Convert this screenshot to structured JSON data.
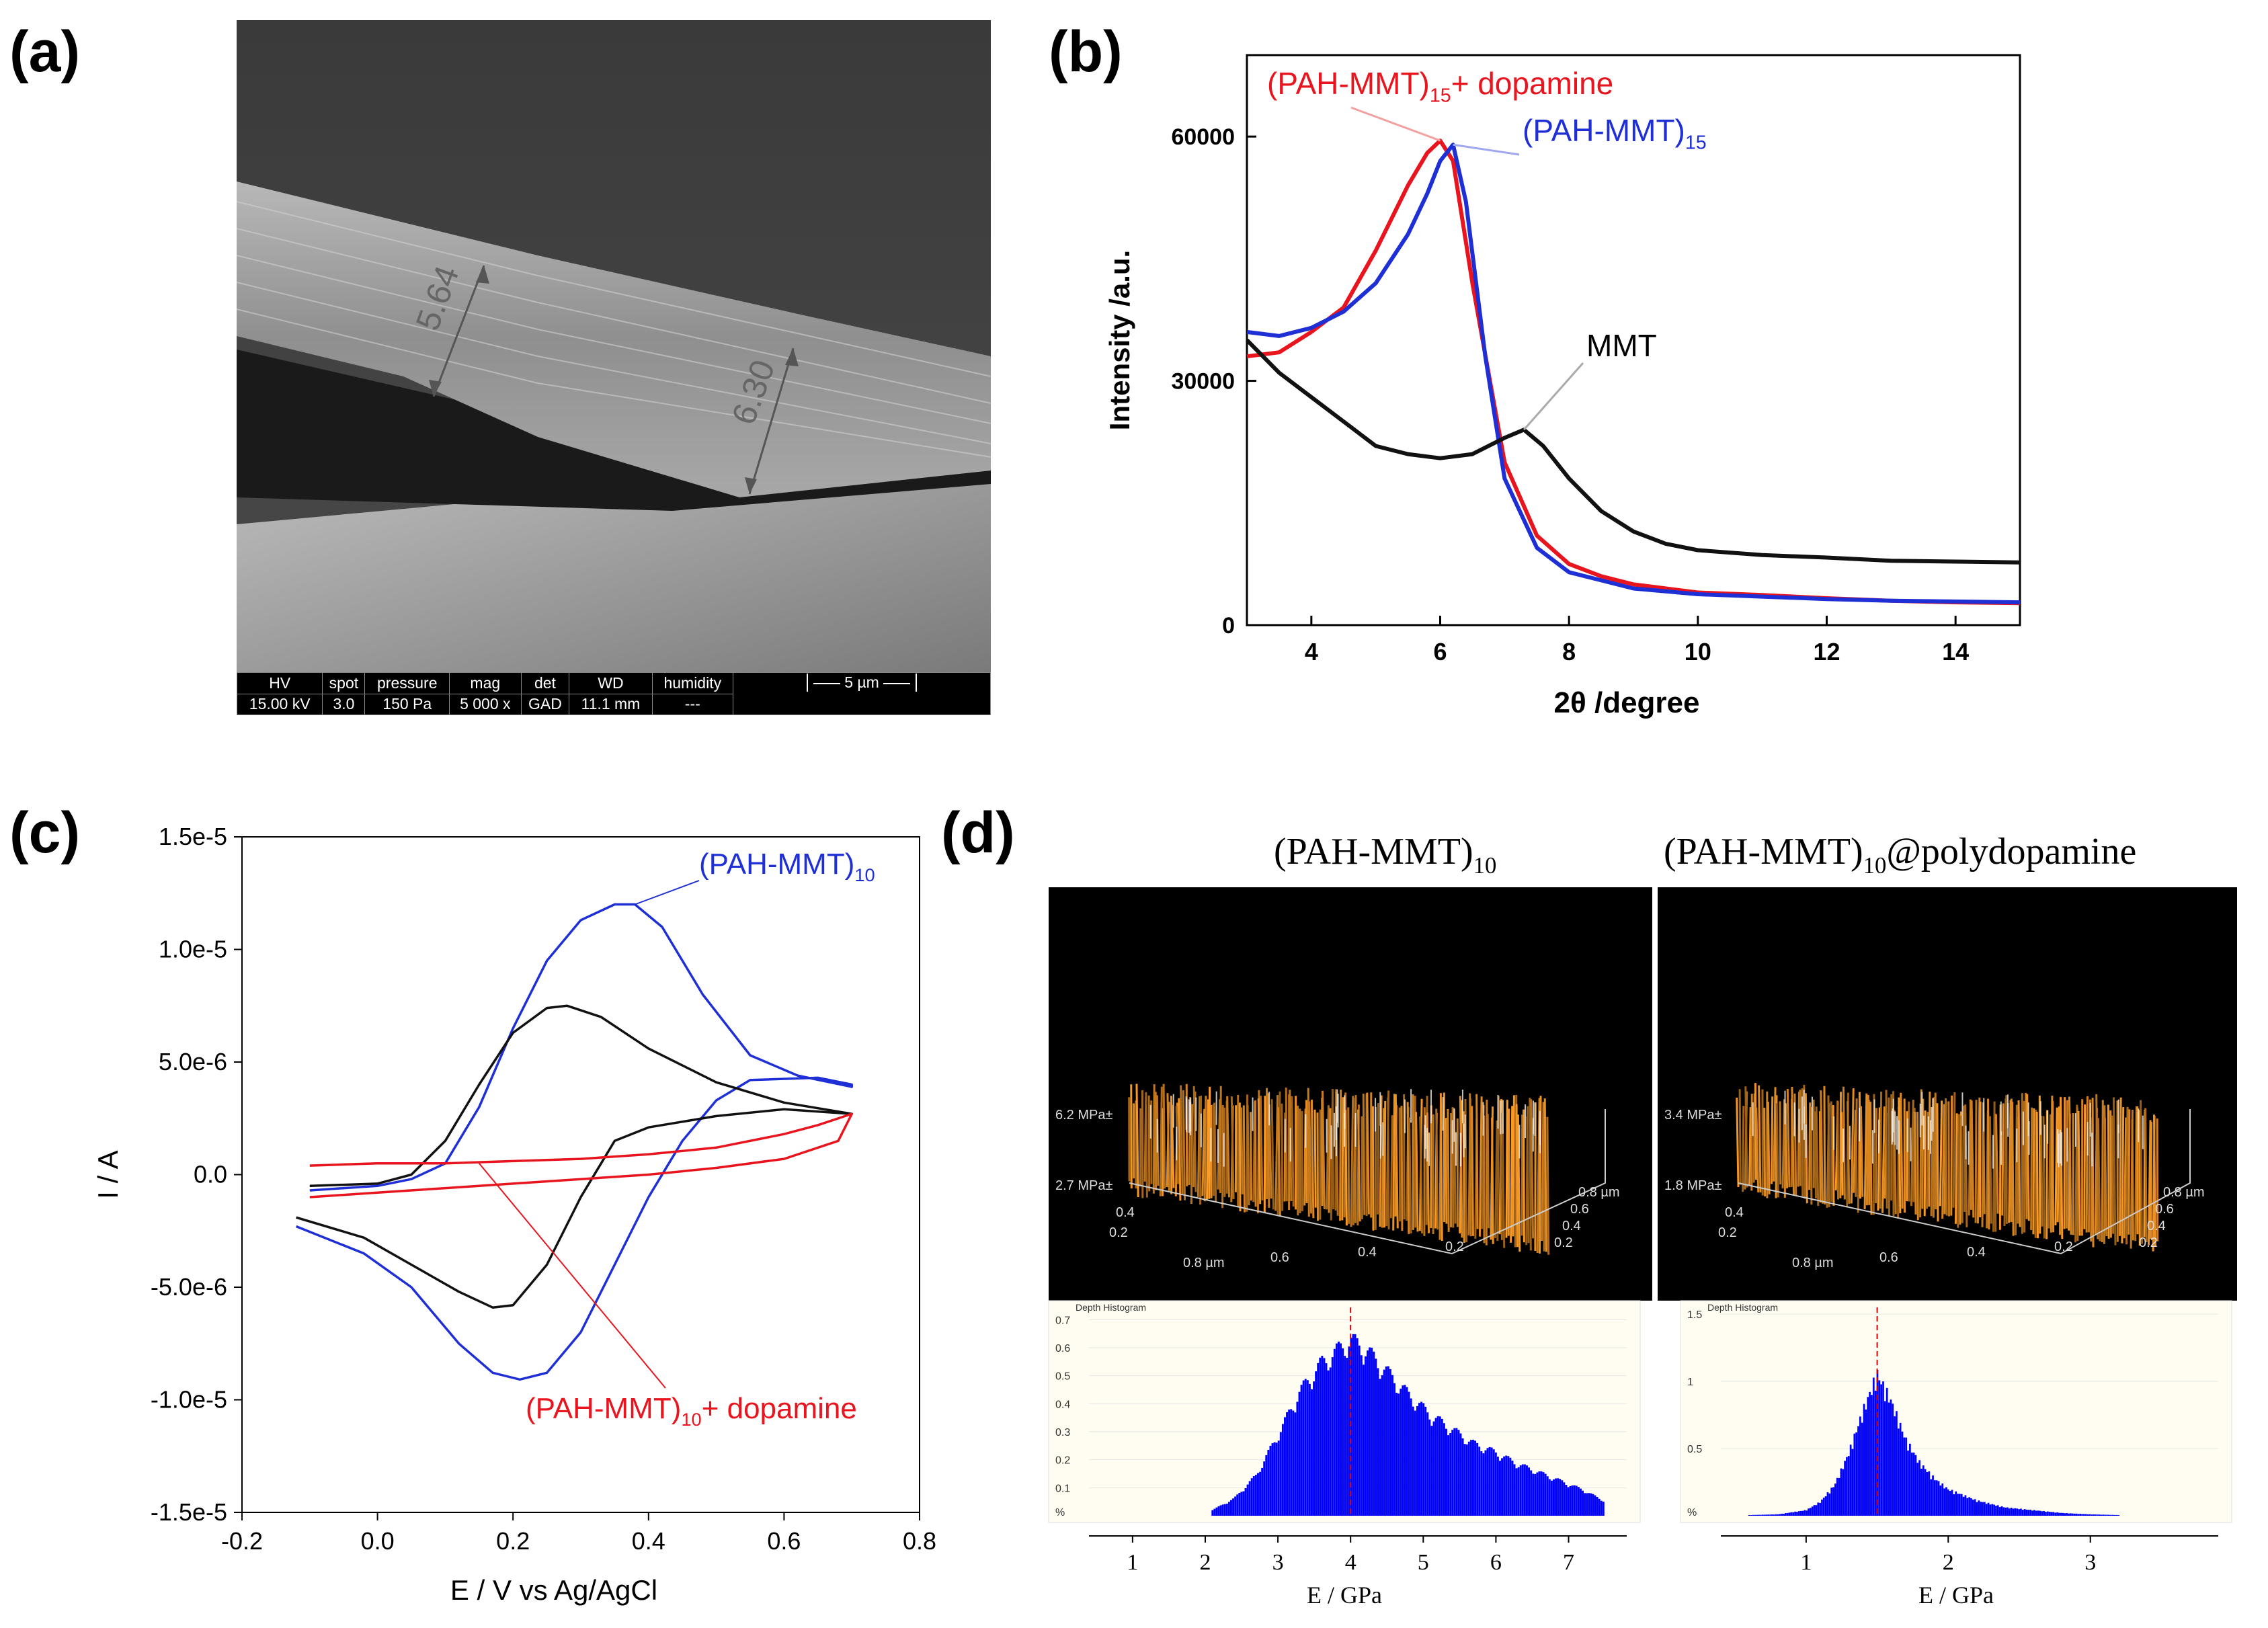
{
  "panels": {
    "a": {
      "label": "(a)",
      "measurements": [
        "5.64",
        "6.30"
      ],
      "info_bar": {
        "headers": [
          "HV",
          "spot",
          "pressure",
          "mag",
          "det",
          "WD",
          "humidity"
        ],
        "values": [
          "15.00 kV",
          "3.0",
          "150 Pa",
          "5 000 x",
          "GAD",
          "11.1 mm",
          "---"
        ],
        "scale_label": "5 µm"
      }
    },
    "b": {
      "label": "(b)"
    },
    "c": {
      "label": "(c)"
    },
    "d": {
      "label": "(d)",
      "titles": {
        "left": {
          "base": "(PAH-MMT)",
          "sub": "10",
          "suffix": ""
        },
        "right": {
          "base": "(PAH-MMT)",
          "sub": "10",
          "suffix": "@polydopamine"
        }
      },
      "afm_left": {
        "z_labels": [
          "6.2 MPa±",
          "2.7 MPa±"
        ],
        "x_ticks": [
          "0.8 µm",
          "0.6",
          "0.4",
          "0.2"
        ],
        "y_ticks": [
          "0.8 µm",
          "0.6",
          "0.4",
          "0.2"
        ],
        "side_ticks": [
          "0.4",
          "0.2"
        ]
      },
      "afm_right": {
        "z_labels": [
          "3.4 MPa±",
          "1.8 MPa±"
        ],
        "x_ticks": [
          "0.8 µm",
          "0.6",
          "0.4",
          "0.2"
        ],
        "y_ticks": [
          "0.8 µm",
          "0.6",
          "0.4",
          "0.2"
        ],
        "side_ticks": [
          "0.4",
          "0.2"
        ]
      }
    }
  },
  "colors": {
    "red": "#e8141e",
    "blue": "#1f2fd6",
    "black": "#111111",
    "hist_blue": "#0000ff",
    "afm_orange": "#c9861e"
  },
  "chart_data": [
    {
      "id": "b",
      "type": "line",
      "title": "",
      "xlabel": "2θ /degree",
      "ylabel": "Intensity /a.u.",
      "xlim": [
        3,
        15
      ],
      "ylim": [
        0,
        70000
      ],
      "xticks": [
        4,
        6,
        8,
        10,
        12,
        14
      ],
      "yticks": [
        0,
        30000,
        60000
      ],
      "series": [
        {
          "name": "(PAH-MMT)",
          "sub": "15",
          "suffix": "+ dopamine",
          "color": "red",
          "x": [
            3,
            3.5,
            4,
            4.5,
            5,
            5.5,
            5.8,
            6.0,
            6.2,
            6.5,
            7.0,
            7.5,
            8,
            8.5,
            9,
            10,
            11,
            12,
            13,
            14,
            15
          ],
          "y": [
            33000,
            33500,
            36000,
            39000,
            46000,
            54000,
            58000,
            59500,
            57000,
            42000,
            20000,
            11000,
            7500,
            6000,
            5000,
            4000,
            3700,
            3300,
            3000,
            2800,
            2700
          ]
        },
        {
          "name": "(PAH-MMT)",
          "sub": "15",
          "suffix": "",
          "color": "blue",
          "x": [
            3,
            3.5,
            4,
            4.5,
            5,
            5.5,
            5.8,
            6.0,
            6.2,
            6.4,
            6.7,
            7.0,
            7.5,
            8,
            8.5,
            9,
            10,
            11,
            12,
            13,
            14,
            15
          ],
          "y": [
            36000,
            35500,
            36500,
            38500,
            42000,
            48000,
            53000,
            57000,
            59000,
            52000,
            33000,
            18000,
            9500,
            6500,
            5500,
            4500,
            3800,
            3500,
            3200,
            3000,
            2900,
            2800
          ]
        },
        {
          "name": "MMT",
          "sub": "",
          "suffix": "",
          "color": "black",
          "x": [
            3,
            3.5,
            4,
            4.5,
            5,
            5.5,
            6,
            6.5,
            7,
            7.3,
            7.6,
            8,
            8.5,
            9,
            9.5,
            10,
            11,
            12,
            13,
            14,
            15
          ],
          "y": [
            35000,
            31000,
            28000,
            25000,
            22000,
            21000,
            20500,
            21000,
            23000,
            24000,
            22000,
            18000,
            14000,
            11500,
            10000,
            9200,
            8600,
            8300,
            7900,
            7800,
            7700
          ]
        }
      ],
      "annotations": [
        "(PAH-MMT)15+ dopamine",
        "(PAH-MMT)15",
        "MMT"
      ]
    },
    {
      "id": "c",
      "type": "line",
      "title": "",
      "xlabel": "E / V vs Ag/AgCl",
      "ylabel": "I / A",
      "xlim": [
        -0.2,
        0.8
      ],
      "ylim": [
        -1.5e-05,
        1.5e-05
      ],
      "xtick_labels": [
        "-0.2",
        "0.0",
        "0.2",
        "0.4",
        "0.6",
        "0.8"
      ],
      "ytick_labels": [
        "1.5e-5",
        "1.0e-5",
        "5.0e-6",
        "0.0",
        "-5.0e-6",
        "-1.0e-5",
        "-1.5e-5"
      ],
      "series": [
        {
          "name": "(PAH-MMT)",
          "sub": "10",
          "suffix": "",
          "color": "blue",
          "x": [
            -0.1,
            0.0,
            0.05,
            0.1,
            0.15,
            0.2,
            0.25,
            0.3,
            0.35,
            0.38,
            0.42,
            0.48,
            0.55,
            0.62,
            0.7,
            0.7,
            0.65,
            0.55,
            0.5,
            0.45,
            0.4,
            0.35,
            0.3,
            0.25,
            0.21,
            0.17,
            0.12,
            0.05,
            -0.02,
            -0.12
          ],
          "y": [
            -7e-07,
            -5e-07,
            -2e-07,
            5e-07,
            3e-06,
            6.5e-06,
            9.5e-06,
            1.13e-05,
            1.2e-05,
            1.2e-05,
            1.1e-05,
            8e-06,
            5.3e-06,
            4.4e-06,
            3.9e-06,
            4e-06,
            4.3e-06,
            4.2e-06,
            3.3e-06,
            1.5e-06,
            -1e-06,
            -4e-06,
            -7e-06,
            -8.8e-06,
            -9.1e-06,
            -8.8e-06,
            -7.5e-06,
            -5e-06,
            -3.5e-06,
            -2.3e-06
          ]
        },
        {
          "name": "black",
          "sub": "",
          "suffix": "",
          "color": "black",
          "x": [
            -0.1,
            0.0,
            0.05,
            0.1,
            0.15,
            0.2,
            0.25,
            0.28,
            0.33,
            0.4,
            0.5,
            0.6,
            0.7,
            0.7,
            0.6,
            0.5,
            0.4,
            0.35,
            0.3,
            0.25,
            0.2,
            0.17,
            0.12,
            0.05,
            -0.02,
            -0.12
          ],
          "y": [
            -5e-07,
            -4e-07,
            0.0,
            1.5e-06,
            4e-06,
            6.3e-06,
            7.4e-06,
            7.5e-06,
            7e-06,
            5.6e-06,
            4.1e-06,
            3.2e-06,
            2.7e-06,
            2.7e-06,
            2.9e-06,
            2.6e-06,
            2.1e-06,
            1.5e-06,
            -1e-06,
            -4e-06,
            -5.8e-06,
            -5.9e-06,
            -5.2e-06,
            -4e-06,
            -2.8e-06,
            -1.9e-06
          ]
        },
        {
          "name": "(PAH-MMT)",
          "sub": "10",
          "suffix": "+ dopamine",
          "color": "red",
          "x": [
            -0.1,
            0.0,
            0.1,
            0.2,
            0.3,
            0.4,
            0.5,
            0.6,
            0.65,
            0.7,
            0.68,
            0.6,
            0.5,
            0.4,
            0.3,
            0.2,
            0.1,
            0.0,
            -0.1
          ],
          "y": [
            4e-07,
            5e-07,
            5e-07,
            6e-07,
            7e-07,
            9e-07,
            1.2e-06,
            1.8e-06,
            2.2e-06,
            2.7e-06,
            1.5e-06,
            7e-07,
            3e-07,
            0.0,
            -2e-07,
            -4e-07,
            -6e-07,
            -8e-07,
            -1e-06
          ]
        }
      ],
      "annotations": [
        "(PAH-MMT)10",
        "(PAH-MMT)10+ dopamine"
      ]
    },
    {
      "id": "d-left-hist",
      "type": "bar",
      "title": "Depth Histogram",
      "xlabel": "E / GPa",
      "ylabel": "%",
      "xlim": [
        0.4,
        7.8
      ],
      "ylim": [
        0,
        0.72
      ],
      "xtick_labels": [
        "1",
        "2",
        "3",
        "4",
        "5",
        "6",
        "7"
      ],
      "ytick_labels": [
        "0.7",
        "0.6",
        "0.5",
        "0.4",
        "0.3",
        "0.2",
        "0.1",
        "%"
      ],
      "peak": 4.0,
      "x": [
        2.1,
        2.4,
        2.7,
        3.0,
        3.3,
        3.6,
        3.9,
        4.0,
        4.2,
        4.5,
        4.8,
        5.1,
        5.4,
        5.7,
        6.0,
        6.3,
        6.6,
        6.9,
        7.2,
        7.5
      ],
      "values": [
        0.02,
        0.06,
        0.14,
        0.28,
        0.43,
        0.53,
        0.59,
        0.61,
        0.58,
        0.5,
        0.42,
        0.35,
        0.3,
        0.25,
        0.22,
        0.18,
        0.15,
        0.12,
        0.09,
        0.05
      ]
    },
    {
      "id": "d-right-hist",
      "type": "bar",
      "title": "Depth Histogram",
      "xlabel": "E / GPa",
      "ylabel": "%",
      "xlim": [
        0.4,
        3.9
      ],
      "ylim": [
        0,
        1.5
      ],
      "xtick_labels": [
        "1",
        "2",
        "3"
      ],
      "ytick_labels": [
        "1.5",
        "1",
        "0.5",
        "%"
      ],
      "peak": 1.5,
      "x": [
        0.6,
        0.8,
        1.0,
        1.1,
        1.2,
        1.3,
        1.4,
        1.5,
        1.6,
        1.7,
        1.8,
        1.9,
        2.0,
        2.2,
        2.4,
        2.6,
        2.8,
        3.0,
        3.2
      ],
      "values": [
        0.005,
        0.01,
        0.04,
        0.1,
        0.22,
        0.45,
        0.75,
        1.02,
        0.82,
        0.55,
        0.38,
        0.27,
        0.19,
        0.11,
        0.06,
        0.04,
        0.02,
        0.01,
        0.005
      ]
    }
  ]
}
